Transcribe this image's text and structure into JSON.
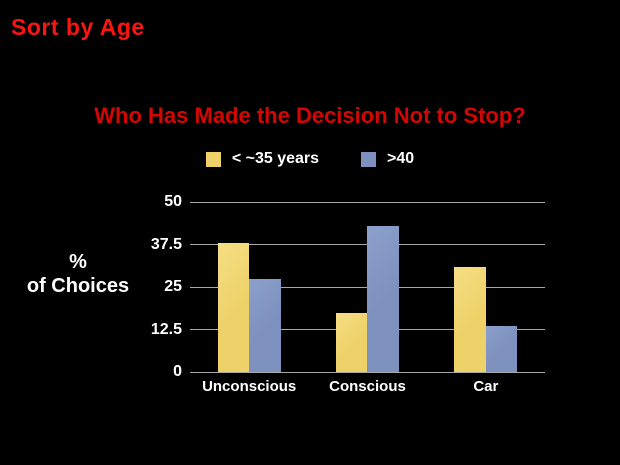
{
  "slide": {
    "title": "Sort by Age"
  },
  "chart_data": {
    "type": "bar",
    "title": "Who Has Made the Decision Not to Stop?",
    "categories": [
      "Unconscious",
      "Conscious",
      "Car"
    ],
    "series": [
      {
        "name": "< ~35 years",
        "color": "#eed168",
        "color_light": "#f5de84",
        "values": [
          38,
          17.5,
          31
        ]
      },
      {
        "name": ">40",
        "color": "#7d90be",
        "color_light": "#8ca0cb",
        "values": [
          27.5,
          43,
          13.5
        ]
      }
    ],
    "ylabel_lines": [
      "%",
      "of Choices"
    ],
    "yticks": [
      0,
      12.5,
      25,
      37.5,
      50
    ],
    "ylim": [
      0,
      50
    ],
    "grid": true,
    "legend_position": "top"
  },
  "colors": {
    "background": "#000000",
    "slide_title": "#fb1511",
    "chart_title": "#d40603",
    "text": "#ffffff",
    "gridline": "#a8a8a8"
  }
}
